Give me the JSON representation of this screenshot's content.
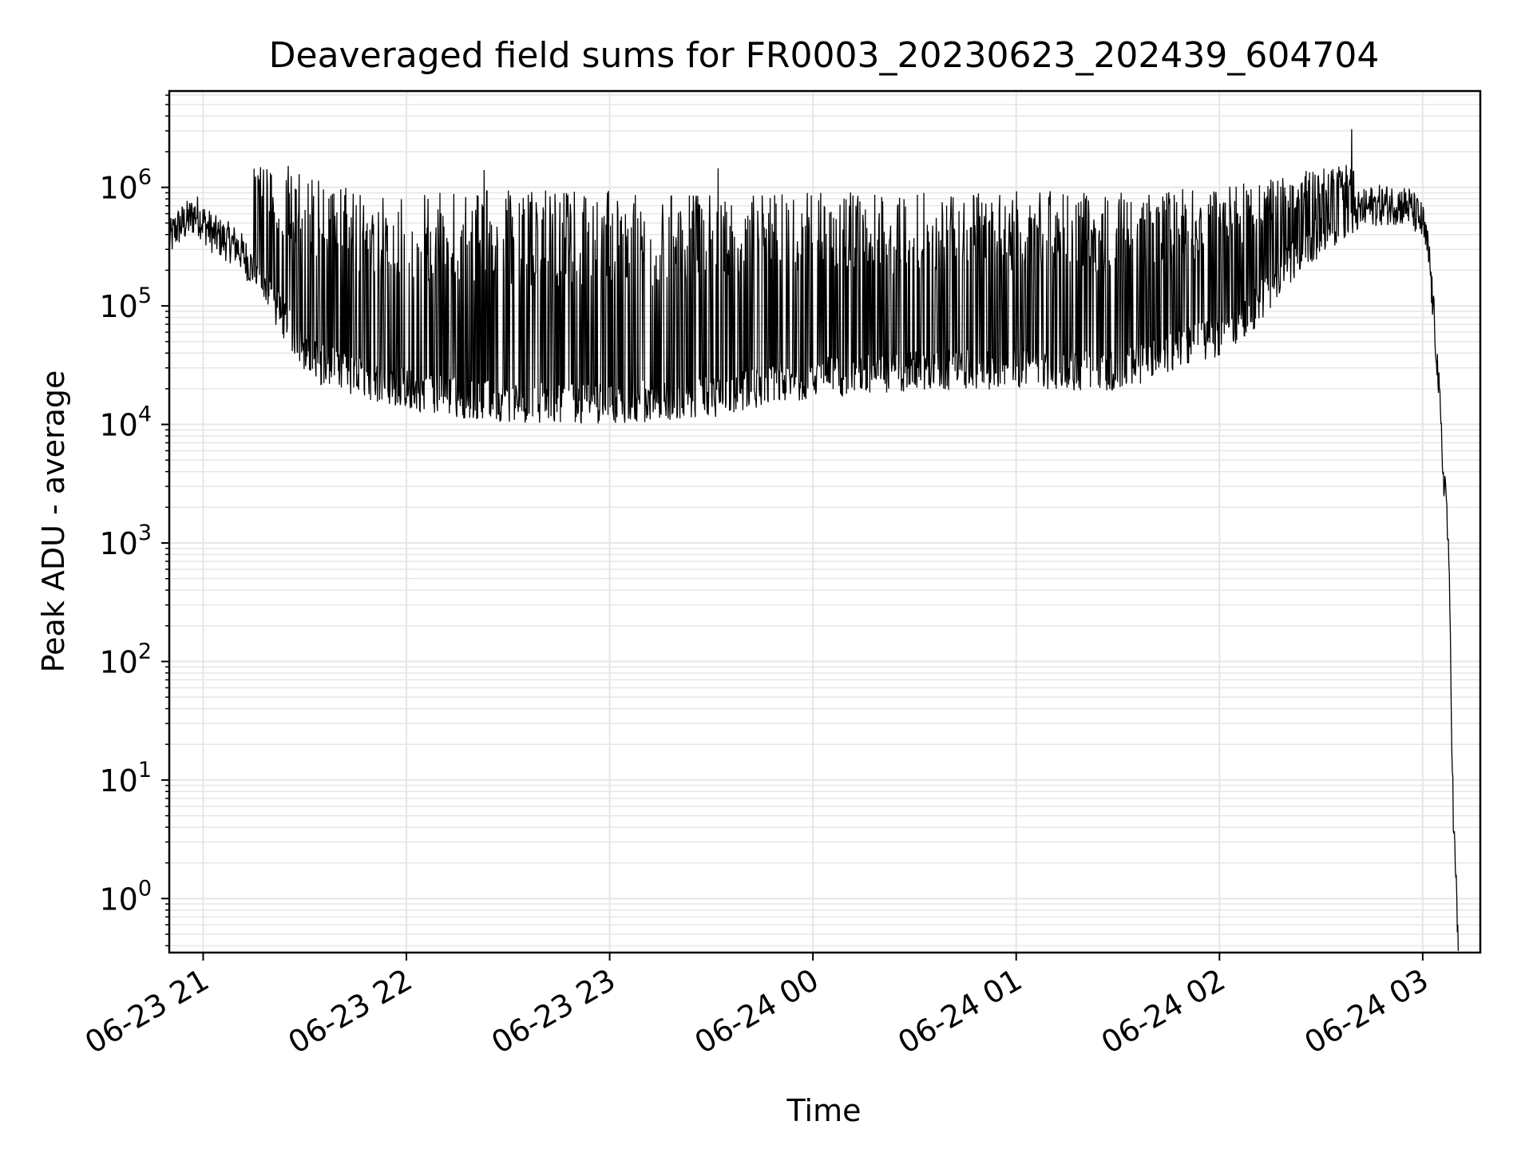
{
  "chart_data": {
    "type": "line",
    "title": "Deaveraged field sums for FR0003_20230623_202439_604704",
    "xlabel": "Time",
    "ylabel": "Peak ADU - average",
    "yscale": "log",
    "grid": "on (major and minor)",
    "legend": "none",
    "line_color": "#000000",
    "grid_color": "#e6e6e6",
    "xlim": [
      "2023-06-23 20:50",
      "2023-06-24 03:17"
    ],
    "ylim": [
      0.35,
      6500000
    ],
    "x_ticks": [
      {
        "label": "06-23 21",
        "value": "2023-06-23 21:00"
      },
      {
        "label": "06-23 22",
        "value": "2023-06-23 22:00"
      },
      {
        "label": "06-23 23",
        "value": "2023-06-23 23:00"
      },
      {
        "label": "06-24 00",
        "value": "2023-06-24 00:00"
      },
      {
        "label": "06-24 01",
        "value": "2023-06-24 01:00"
      },
      {
        "label": "06-24 02",
        "value": "2023-06-24 02:00"
      },
      {
        "label": "06-24 03",
        "value": "2023-06-24 03:00"
      }
    ],
    "y_ticks": [
      {
        "base": "10",
        "exp": "0",
        "value": 1
      },
      {
        "base": "10",
        "exp": "1",
        "value": 10
      },
      {
        "base": "10",
        "exp": "2",
        "value": 100
      },
      {
        "base": "10",
        "exp": "3",
        "value": 1000
      },
      {
        "base": "10",
        "exp": "4",
        "value": 10000
      },
      {
        "base": "10",
        "exp": "5",
        "value": 100000
      },
      {
        "base": "10",
        "exp": "6",
        "value": 1000000
      }
    ],
    "series": [
      {
        "baseline": {
          "x": [
            "2023-06-23 20:50",
            "2023-06-23 20:52",
            "2023-06-23 20:58",
            "2023-06-23 21:03",
            "2023-06-23 21:10",
            "2023-06-23 21:15",
            "2023-06-23 21:20",
            "2023-06-23 21:25",
            "2023-06-23 21:30",
            "2023-06-23 21:35",
            "2023-06-23 21:45",
            "2023-06-23 22:00",
            "2023-06-23 22:15",
            "2023-06-23 22:30",
            "2023-06-23 23:00",
            "2023-06-23 23:30",
            "2023-06-24 00:00",
            "2023-06-24 00:30",
            "2023-06-24 01:00",
            "2023-06-24 01:30",
            "2023-06-24 01:45",
            "2023-06-24 02:00",
            "2023-06-24 02:10",
            "2023-06-24 02:20",
            "2023-06-24 02:30",
            "2023-06-24 02:37",
            "2023-06-24 02:45",
            "2023-06-24 02:52",
            "2023-06-24 02:56",
            "2023-06-24 03:00",
            "2023-06-24 03:02",
            "2023-06-24 03:03",
            "2023-06-24 03:04",
            "2023-06-24 03:05",
            "2023-06-24 03:06",
            "2023-06-24 03:07",
            "2023-06-24 03:08",
            "2023-06-24 03:09",
            "2023-06-24 03:10",
            "2023-06-24 03:10:30"
          ],
          "y": [
            350000,
            450000,
            600000,
            400000,
            320000,
            200000,
            110000,
            65000,
            42000,
            32000,
            25000,
            20000,
            17000,
            15500,
            15000,
            17000,
            25000,
            28000,
            30000,
            28000,
            40000,
            55000,
            90000,
            220000,
            400000,
            550000,
            700000,
            720000,
            690000,
            500000,
            250000,
            100000,
            45000,
            15000,
            4000,
            2500,
            300,
            5,
            1,
            0.35
          ]
        },
        "envelope": {
          "x": [
            "2023-06-23 21:15",
            "2023-06-23 21:30",
            "2023-06-23 21:38",
            "2023-06-23 21:45",
            "2023-06-23 22:00",
            "2023-06-23 22:30",
            "2023-06-23 23:00",
            "2023-06-23 23:30",
            "2023-06-24 00:00",
            "2023-06-24 00:30",
            "2023-06-24 01:00",
            "2023-06-24 01:30",
            "2023-06-24 02:00",
            "2023-06-24 02:20",
            "2023-06-24 02:40"
          ],
          "y": [
            1600000,
            1500000,
            1050000,
            1000000,
            950000,
            950000,
            940000,
            900000,
            940000,
            900000,
            950000,
            920000,
            1000000,
            1300000,
            1600000
          ]
        },
        "notable_peaks": [
          {
            "x": "2023-06-23 22:23",
            "y": 1400000
          },
          {
            "x": "2023-06-23 23:32",
            "y": 1450000
          },
          {
            "x": "2023-06-24 02:39",
            "y": 3100000
          }
        ]
      }
    ]
  }
}
